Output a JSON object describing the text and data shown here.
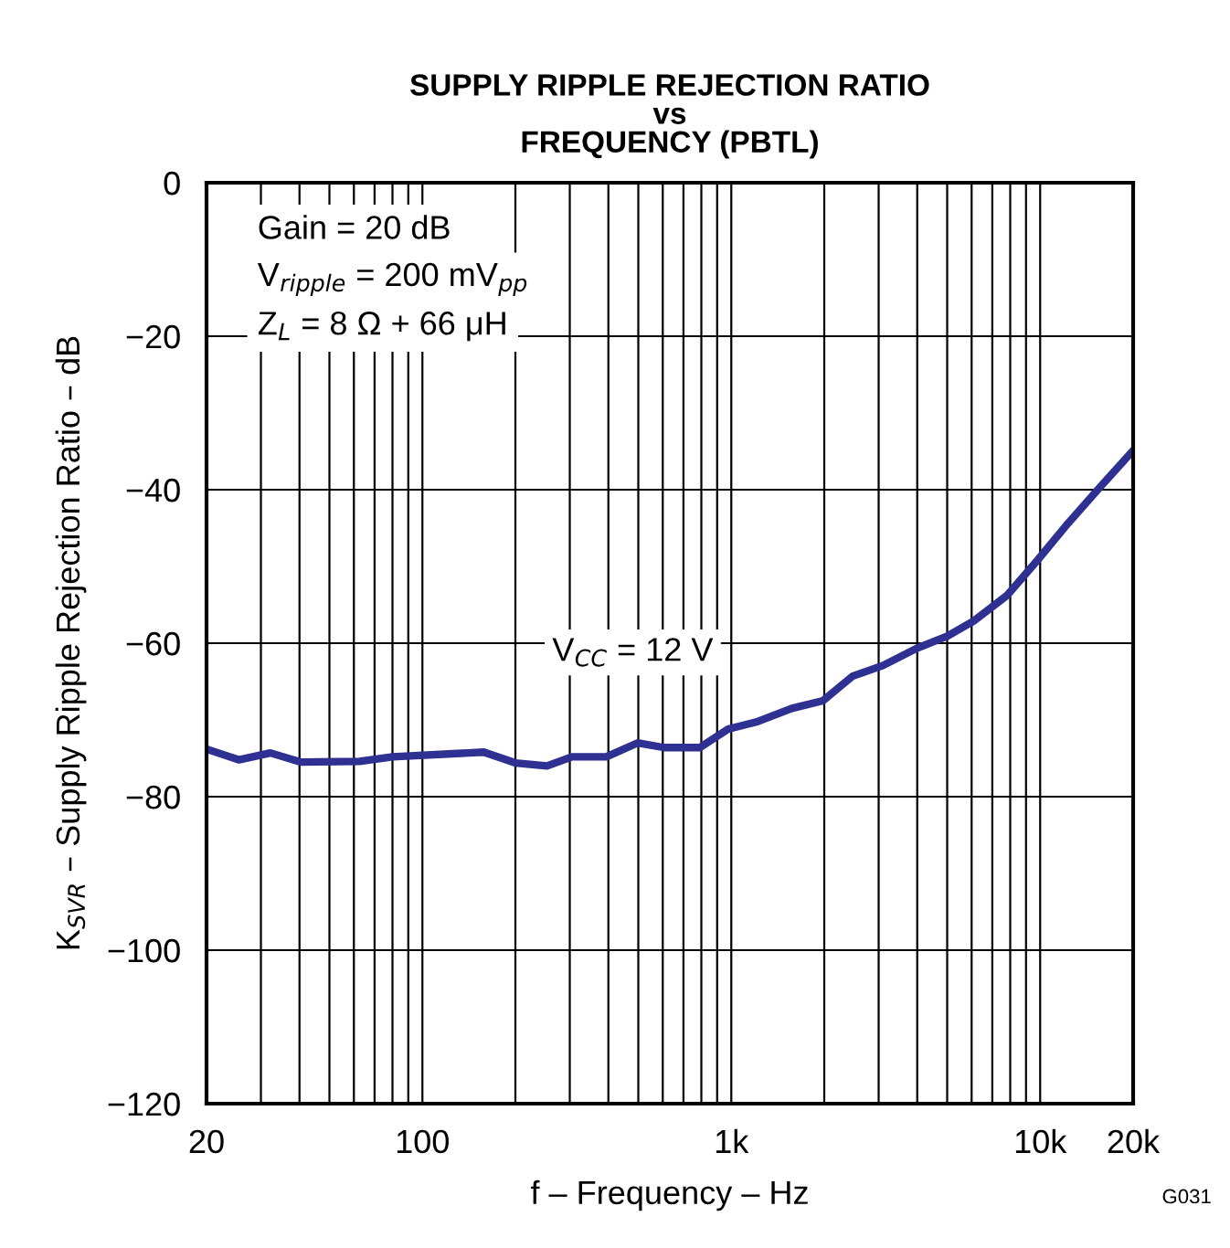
{
  "chart_data": {
    "type": "line",
    "title": "SUPPLY RIPPLE REJECTION RATIO\nvs\nFREQUENCY (PBTL)",
    "xlabel": "f – Frequency – Hz",
    "ylabel": "K$_{SVR}$ – Supply Ripple Rejection Ratio – dB",
    "log": "x",
    "xlim": [
      20,
      20000
    ],
    "xticks": [
      20,
      100,
      {
        "value": 1000,
        "label": "1k"
      },
      {
        "value": 10000,
        "label": "10k"
      },
      {
        "value": 20000,
        "label": "20k"
      }
    ],
    "ylim": [
      -120,
      0
    ],
    "yticks": [
      {
        "value": -120,
        "label": "−120"
      },
      {
        "value": -100,
        "label": "−100"
      },
      {
        "value": -80,
        "label": "−80"
      },
      {
        "value": -60,
        "label": "−60"
      },
      {
        "value": -40,
        "label": "−40"
      },
      {
        "value": -20,
        "label": "−20"
      },
      0
    ],
    "grid": true,
    "marker": "none",
    "line_style": "solid",
    "annotations": [
      "Gain = 20 dB",
      "V$_{ripple}$ = 200 mV$_{pp}$",
      "Z$_{L}$ = 8 Ω + 66 μH",
      "G031"
    ],
    "series": [
      {
        "name": "V$_{CC}$ = 12 V",
        "color": "#2e3192",
        "x": [
          20,
          25.5,
          32.2,
          40.5,
          62.6,
          80,
          158,
          200,
          253,
          305,
          394,
          497,
          606,
          791,
          977,
          1220,
          1570,
          1980,
          2470,
          3100,
          3970,
          5000,
          6100,
          7800,
          9800,
          12300,
          15600,
          20000
        ],
        "values": [
          -73.8,
          -75.2,
          -74.3,
          -75.5,
          -75.4,
          -74.8,
          -74.2,
          -75.6,
          -76.0,
          -74.8,
          -74.8,
          -73.0,
          -73.6,
          -73.6,
          -71.2,
          -70.2,
          -68.5,
          -67.5,
          -64.3,
          -62.9,
          -60.7,
          -59.1,
          -57.1,
          -53.8,
          -49.2,
          -44.4,
          -39.7,
          -34.9
        ]
      }
    ]
  }
}
